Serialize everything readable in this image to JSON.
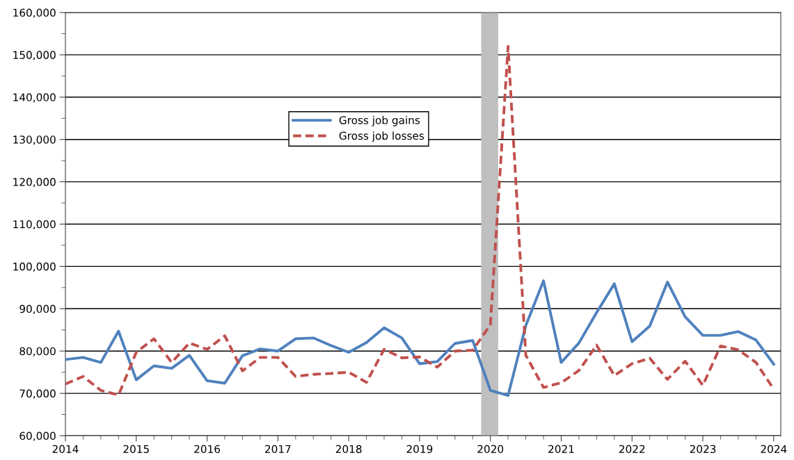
{
  "chart_data": {
    "type": "line",
    "x": [
      2014,
      2014.25,
      2014.5,
      2014.75,
      2015,
      2015.25,
      2015.5,
      2015.75,
      2016,
      2016.25,
      2016.5,
      2016.75,
      2017,
      2017.25,
      2017.5,
      2017.75,
      2018,
      2018.25,
      2018.5,
      2018.75,
      2019,
      2019.25,
      2019.5,
      2019.75,
      2020,
      2020.25,
      2020.5,
      2020.75,
      2021,
      2021.25,
      2021.5,
      2021.75,
      2022,
      2022.25,
      2022.5,
      2022.75,
      2023,
      2023.25,
      2023.5,
      2023.75,
      2024
    ],
    "series": [
      {
        "name": "Gross job gains",
        "color": "#4f81bd",
        "line_style": "solid",
        "values": [
          78000,
          78500,
          77300,
          84700,
          73200,
          76500,
          75900,
          79000,
          73000,
          72400,
          78900,
          80500,
          80000,
          82900,
          83100,
          81300,
          79700,
          82000,
          85500,
          83100,
          77000,
          77500,
          81800,
          82500,
          70700,
          69500,
          86000,
          96600,
          77300,
          81900,
          89100,
          95900,
          82200,
          85900,
          96300,
          88100,
          83700,
          83700,
          84600,
          82600,
          76900
        ]
      },
      {
        "name": "Gross job losses",
        "color": "#c0504d",
        "line_style": "dashed",
        "values": [
          72200,
          74000,
          70700,
          69600,
          79700,
          82900,
          77300,
          81900,
          80400,
          83600,
          75300,
          78500,
          78500,
          74000,
          74500,
          74700,
          75000,
          72600,
          80400,
          78400,
          78600,
          76200,
          80000,
          80200,
          86200,
          152000,
          79000,
          71400,
          72500,
          75400,
          81400,
          74200,
          77000,
          78300,
          73300,
          77600,
          71900,
          81200,
          80300,
          77300,
          71000
        ]
      }
    ],
    "xlim": [
      2014,
      2024.1
    ],
    "xticks": [
      2014,
      2015,
      2016,
      2017,
      2018,
      2019,
      2020,
      2021,
      2022,
      2023,
      2024
    ],
    "ylim": [
      60000,
      160000
    ],
    "yticks": [
      {
        "value": 60000,
        "label": "60,000"
      },
      {
        "value": 70000,
        "label": "70,000"
      },
      {
        "value": 80000,
        "label": "80,000"
      },
      {
        "value": 90000,
        "label": "90,000"
      },
      {
        "value": 100000,
        "label": "100,000"
      },
      {
        "value": 110000,
        "label": "110,000"
      },
      {
        "value": 120000,
        "label": "120,000"
      },
      {
        "value": 130000,
        "label": "130,000"
      },
      {
        "value": 140000,
        "label": "140,000"
      },
      {
        "value": 150000,
        "label": "150,000"
      },
      {
        "value": 160000,
        "label": "160,000"
      }
    ],
    "bands": [
      {
        "axis": "x",
        "from": 2019.87,
        "to": 2020.11,
        "color": "#bfbfbf"
      }
    ],
    "grid": "y",
    "legend": "top left"
  }
}
